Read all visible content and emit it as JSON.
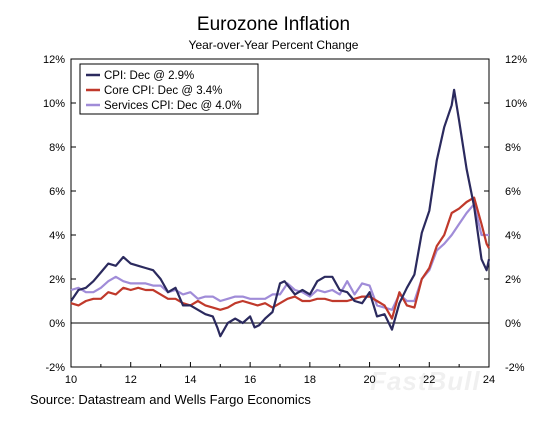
{
  "chart_data": {
    "type": "line",
    "title": "Eurozone Inflation",
    "subtitle": "Year-over-Year Percent Change",
    "source": "Source: Datastream and Wells Fargo Economics",
    "watermark": "FastBull",
    "xlim": [
      2010,
      2024
    ],
    "ylim": [
      -2,
      12
    ],
    "x_ticks": [
      {
        "value": 2010,
        "label": "10"
      },
      {
        "value": 2012,
        "label": "12"
      },
      {
        "value": 2014,
        "label": "14"
      },
      {
        "value": 2016,
        "label": "16"
      },
      {
        "value": 2018,
        "label": "18"
      },
      {
        "value": 2020,
        "label": "20"
      },
      {
        "value": 2022,
        "label": "22"
      },
      {
        "value": 2024,
        "label": "24"
      }
    ],
    "y_ticks": [
      {
        "value": 12,
        "label": "12%"
      },
      {
        "value": 10,
        "label": "10%"
      },
      {
        "value": 8,
        "label": "8%"
      },
      {
        "value": 6,
        "label": "6%"
      },
      {
        "value": 4,
        "label": "4%"
      },
      {
        "value": 2,
        "label": "2%"
      },
      {
        "value": 0,
        "label": "0%"
      },
      {
        "value": -2,
        "label": "-2%"
      }
    ],
    "legend_position": "top-left",
    "series": [
      {
        "name": "CPI: Dec @ 2.9%",
        "color": "#2b2a5e",
        "x": [
          2010.0,
          2010.25,
          2010.5,
          2010.75,
          2011.0,
          2011.25,
          2011.5,
          2011.75,
          2012.0,
          2012.25,
          2012.5,
          2012.75,
          2013.0,
          2013.25,
          2013.5,
          2013.75,
          2014.0,
          2014.25,
          2014.5,
          2014.75,
          2014.9,
          2015.0,
          2015.25,
          2015.5,
          2015.75,
          2016.0,
          2016.15,
          2016.3,
          2016.5,
          2016.75,
          2017.0,
          2017.15,
          2017.5,
          2017.75,
          2018.0,
          2018.25,
          2018.5,
          2018.75,
          2019.0,
          2019.25,
          2019.5,
          2019.75,
          2020.0,
          2020.25,
          2020.5,
          2020.75,
          2021.0,
          2021.25,
          2021.5,
          2021.75,
          2022.0,
          2022.25,
          2022.5,
          2022.75,
          2022.83,
          2023.0,
          2023.25,
          2023.5,
          2023.75,
          2023.92,
          2024.0
        ],
        "y": [
          1.0,
          1.5,
          1.6,
          1.9,
          2.3,
          2.7,
          2.6,
          3.0,
          2.7,
          2.6,
          2.5,
          2.4,
          2.0,
          1.4,
          1.6,
          0.8,
          0.8,
          0.6,
          0.4,
          0.3,
          -0.2,
          -0.6,
          0.0,
          0.2,
          0.0,
          0.3,
          -0.2,
          -0.1,
          0.2,
          0.5,
          1.8,
          1.9,
          1.3,
          1.5,
          1.3,
          1.9,
          2.1,
          2.1,
          1.5,
          1.4,
          1.0,
          0.9,
          1.4,
          0.3,
          0.4,
          -0.3,
          0.9,
          1.6,
          2.2,
          4.1,
          5.1,
          7.4,
          8.9,
          9.9,
          10.6,
          9.2,
          7.0,
          5.3,
          2.9,
          2.4,
          2.9
        ]
      },
      {
        "name": "Core CPI: Dec @ 3.4%",
        "color": "#c0392b",
        "x": [
          2010.0,
          2010.25,
          2010.5,
          2010.75,
          2011.0,
          2011.25,
          2011.5,
          2011.75,
          2012.0,
          2012.25,
          2012.5,
          2012.75,
          2013.0,
          2013.25,
          2013.5,
          2013.75,
          2014.0,
          2014.25,
          2014.5,
          2014.75,
          2015.0,
          2015.25,
          2015.5,
          2015.75,
          2016.0,
          2016.25,
          2016.5,
          2016.75,
          2017.0,
          2017.25,
          2017.5,
          2017.75,
          2018.0,
          2018.25,
          2018.5,
          2018.75,
          2019.0,
          2019.25,
          2019.5,
          2019.75,
          2020.0,
          2020.25,
          2020.5,
          2020.75,
          2021.0,
          2021.25,
          2021.5,
          2021.75,
          2022.0,
          2022.25,
          2022.5,
          2022.75,
          2023.0,
          2023.25,
          2023.5,
          2023.75,
          2023.92,
          2024.0
        ],
        "y": [
          0.9,
          0.8,
          1.0,
          1.1,
          1.1,
          1.4,
          1.3,
          1.6,
          1.5,
          1.6,
          1.5,
          1.5,
          1.3,
          1.1,
          1.1,
          0.9,
          0.8,
          1.0,
          0.8,
          0.7,
          0.6,
          0.7,
          0.9,
          1.0,
          0.9,
          0.8,
          0.9,
          0.7,
          0.9,
          1.1,
          1.2,
          1.0,
          1.0,
          1.1,
          1.1,
          1.0,
          1.0,
          1.0,
          1.1,
          1.2,
          1.2,
          1.0,
          0.8,
          0.2,
          1.4,
          0.8,
          0.7,
          2.0,
          2.5,
          3.5,
          4.0,
          5.0,
          5.2,
          5.5,
          5.7,
          4.5,
          3.6,
          3.4
        ]
      },
      {
        "name": "Services CPI: Dec @ 4.0%",
        "color": "#a08cd8",
        "x": [
          2010.0,
          2010.25,
          2010.5,
          2010.75,
          2011.0,
          2011.25,
          2011.5,
          2011.75,
          2012.0,
          2012.25,
          2012.5,
          2012.75,
          2013.0,
          2013.25,
          2013.5,
          2013.75,
          2014.0,
          2014.25,
          2014.5,
          2014.75,
          2015.0,
          2015.25,
          2015.5,
          2015.75,
          2016.0,
          2016.25,
          2016.5,
          2016.75,
          2017.0,
          2017.25,
          2017.5,
          2017.75,
          2018.0,
          2018.25,
          2018.5,
          2018.75,
          2019.0,
          2019.25,
          2019.5,
          2019.75,
          2020.0,
          2020.25,
          2020.5,
          2020.75,
          2021.0,
          2021.25,
          2021.5,
          2021.75,
          2022.0,
          2022.25,
          2022.5,
          2022.75,
          2023.0,
          2023.25,
          2023.5,
          2023.75,
          2023.92,
          2024.0
        ],
        "y": [
          1.5,
          1.6,
          1.4,
          1.4,
          1.6,
          1.9,
          2.1,
          1.9,
          1.8,
          1.8,
          1.8,
          1.7,
          1.7,
          1.4,
          1.5,
          1.3,
          1.4,
          1.1,
          1.2,
          1.2,
          1.0,
          1.1,
          1.2,
          1.2,
          1.1,
          1.1,
          1.1,
          1.3,
          1.3,
          1.8,
          1.5,
          1.4,
          1.2,
          1.5,
          1.4,
          1.5,
          1.3,
          1.9,
          1.3,
          1.8,
          1.7,
          0.8,
          0.7,
          0.6,
          1.3,
          1.0,
          1.0,
          2.0,
          2.4,
          3.3,
          3.6,
          4.0,
          4.5,
          5.0,
          5.4,
          4.0,
          4.0,
          4.0
        ]
      }
    ]
  }
}
